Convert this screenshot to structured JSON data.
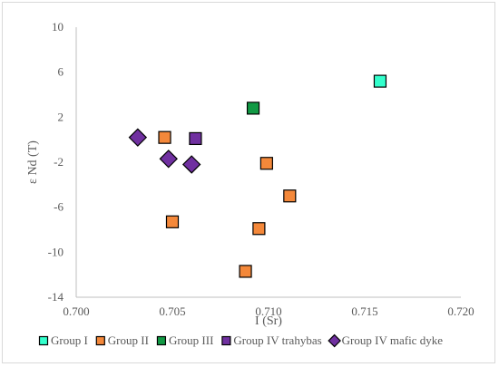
{
  "chart_data": {
    "type": "scatter",
    "xlabel": "I (Sr)",
    "ylabel": "ε Nd (T)",
    "xlim": [
      0.7,
      0.72
    ],
    "ylim": [
      -14,
      10
    ],
    "x_ticks": [
      "0.700",
      "0.705",
      "0.710",
      "0.715",
      "0.720"
    ],
    "y_ticks": [
      "10",
      "6",
      "2",
      "-2",
      "-6",
      "-10",
      "-14"
    ],
    "grid": false,
    "legend_position": "bottom",
    "series": [
      {
        "name": "Group I",
        "marker": "square",
        "color": "#33ffcc",
        "points": [
          [
            0.7158,
            5.2
          ]
        ]
      },
      {
        "name": "Group II",
        "marker": "square",
        "color": "#f4883a",
        "points": [
          [
            0.7046,
            0.2
          ],
          [
            0.705,
            -7.3
          ],
          [
            0.7099,
            -2.1
          ],
          [
            0.7111,
            -5.0
          ],
          [
            0.7095,
            -7.9
          ],
          [
            0.7088,
            -11.7
          ]
        ]
      },
      {
        "name": "Group III",
        "marker": "square",
        "color": "#119944",
        "points": [
          [
            0.7092,
            2.8
          ]
        ]
      },
      {
        "name": "Group IV trahybas",
        "marker": "square",
        "color": "#7030a0",
        "points": [
          [
            0.7062,
            0.1
          ]
        ]
      },
      {
        "name": "Group IV mafic dyke",
        "marker": "diamond",
        "color": "#7030a0",
        "points": [
          [
            0.7032,
            0.2
          ],
          [
            0.7048,
            -1.7
          ],
          [
            0.706,
            -2.2
          ]
        ]
      }
    ]
  }
}
